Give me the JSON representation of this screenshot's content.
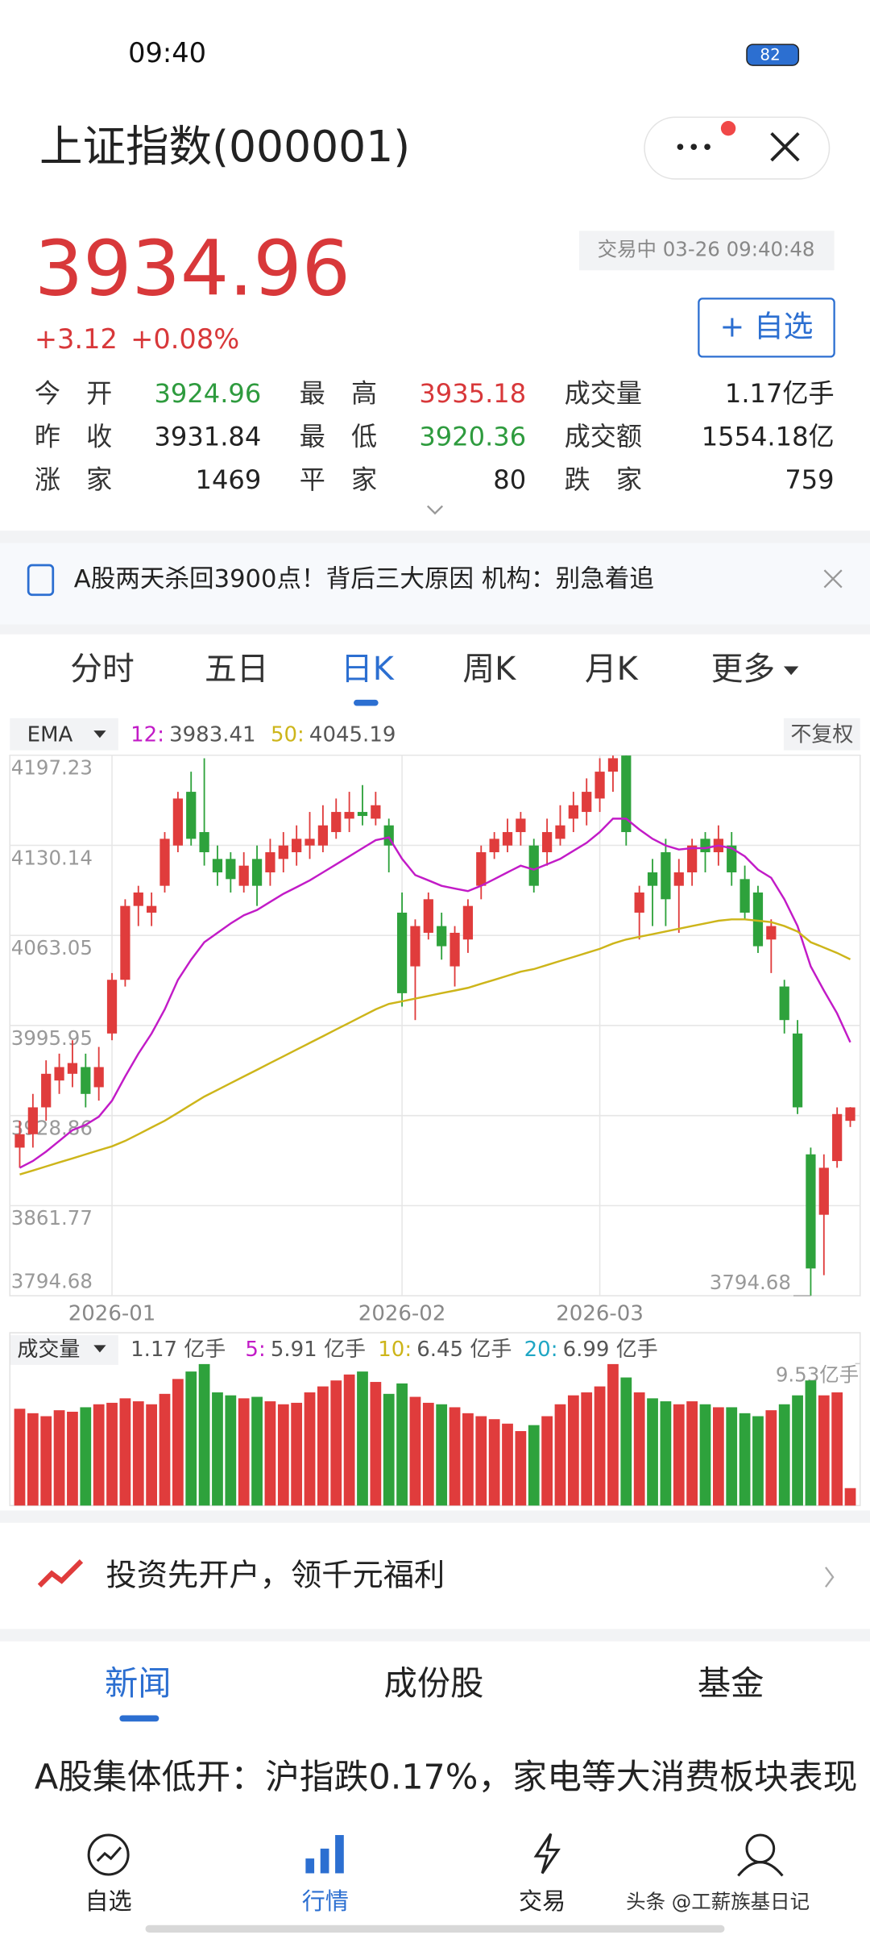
{
  "status": {
    "time": "09:40",
    "battery": "82"
  },
  "header": {
    "title": "上证指数(000001)"
  },
  "quote": {
    "price": "3934.96",
    "change": "+3.12",
    "percent": "+0.08%",
    "status": "交易中 03-26 09:40:48",
    "watch": "+ 自选"
  },
  "stats": [
    {
      "label": "今　开",
      "value": "3924.96",
      "color": "#2e9b3e"
    },
    {
      "label": "最　高",
      "value": "3935.18",
      "color": "#d8383a"
    },
    {
      "label": "成交量",
      "value": "1.17亿手",
      "color": "#222"
    },
    {
      "label": "昨　收",
      "value": "3931.84",
      "color": "#222"
    },
    {
      "label": "最　低",
      "value": "3920.36",
      "color": "#2e9b3e"
    },
    {
      "label": "成交额",
      "value": "1554.18亿",
      "color": "#222"
    },
    {
      "label": "涨　家",
      "value": "1469",
      "color": "#222"
    },
    {
      "label": "平　家",
      "value": "80",
      "color": "#222"
    },
    {
      "label": "跌　家",
      "value": "759",
      "color": "#222"
    }
  ],
  "news_banner": "A股两天杀回3900点！背后三大原因 机构：别急着追",
  "tabs": [
    "分时",
    "五日",
    "日K",
    "周K",
    "月K",
    "更多"
  ],
  "chart_data": {
    "type": "candlestick",
    "indicator": "EMA",
    "adjust": "不复权",
    "categories": [
      null,
      null,
      null,
      null,
      null,
      null,
      null,
      "2026-01",
      null,
      null,
      null,
      null,
      null,
      null,
      null,
      null,
      null,
      null,
      null,
      null,
      null,
      null,
      null,
      null,
      null,
      null,
      null,
      null,
      null,
      "2026-02",
      null,
      null,
      null,
      null,
      null,
      null,
      null,
      null,
      null,
      null,
      null,
      null,
      null,
      null,
      "2026-03",
      null,
      null,
      null,
      null,
      null,
      null,
      null,
      null,
      null,
      null,
      null,
      null,
      null,
      null,
      null,
      null,
      null,
      null,
      null
    ],
    "open": [
      3905,
      3915,
      3935,
      3955,
      3960,
      3965,
      3950,
      3990,
      4030,
      4085,
      4080,
      4100,
      4130,
      4170,
      4140,
      4120,
      4120,
      4100,
      4120,
      4110,
      4120,
      4125,
      4130,
      4130,
      4140,
      4150,
      4155,
      4150,
      4145,
      4080,
      4040,
      4065,
      4070,
      4040,
      4060,
      4100,
      4125,
      4130,
      4140,
      4130,
      4125,
      4135,
      4150,
      4155,
      4165,
      4185,
      4197,
      4080,
      4110,
      4125,
      4100,
      4110,
      4135,
      4125,
      4130,
      4105,
      4095,
      4060,
      4025,
      3990,
      3900,
      3855,
      3895,
      3924.96
    ],
    "high": [
      3925,
      3945,
      3970,
      3975,
      3985,
      3975,
      3980,
      4035,
      4090,
      4100,
      4095,
      4140,
      4170,
      4185,
      4195,
      4130,
      4125,
      4125,
      4130,
      4135,
      4140,
      4145,
      4155,
      4160,
      4165,
      4170,
      4175,
      4170,
      4150,
      4095,
      4075,
      4095,
      4080,
      4070,
      4090,
      4130,
      4140,
      4150,
      4155,
      4135,
      4150,
      4160,
      4170,
      4180,
      4195,
      4197,
      4197,
      4100,
      4120,
      4135,
      4120,
      4135,
      4140,
      4145,
      4140,
      4115,
      4100,
      4075,
      4030,
      4000,
      3905,
      3900,
      3935,
      3935.18
    ],
    "low": [
      3890,
      3905,
      3925,
      3945,
      3950,
      3935,
      3940,
      3985,
      4025,
      4070,
      4070,
      4095,
      4125,
      4130,
      4115,
      4100,
      4095,
      4095,
      4085,
      4100,
      4110,
      4115,
      4120,
      4125,
      4135,
      4140,
      4145,
      4145,
      4110,
      4010,
      4000,
      4060,
      4045,
      4025,
      4050,
      4090,
      4120,
      4125,
      4130,
      4095,
      4115,
      4130,
      4140,
      4145,
      4155,
      4170,
      4130,
      4060,
      4070,
      4070,
      4065,
      4100,
      4110,
      4115,
      4100,
      4075,
      4050,
      4035,
      3990,
      3930,
      3794.68,
      3810,
      3890,
      3920.36
    ],
    "close": [
      3915,
      3935,
      3960,
      3965,
      3968,
      3945,
      3965,
      4030,
      4085,
      4095,
      4085,
      4135,
      4165,
      4135,
      4125,
      4110,
      4105,
      4115,
      4100,
      4125,
      4130,
      4135,
      4135,
      4145,
      4155,
      4155,
      4152,
      4160,
      4130,
      4020,
      4070,
      4090,
      4055,
      4065,
      4085,
      4125,
      4135,
      4140,
      4150,
      4100,
      4140,
      4145,
      4160,
      4170,
      4185,
      4195,
      4140,
      4095,
      4100,
      4090,
      4110,
      4130,
      4125,
      4135,
      4110,
      4080,
      4055,
      4070,
      4000,
      3935,
      3815,
      3890,
      3930,
      3934.96
    ],
    "series": [
      {
        "name": "12:",
        "color": "#c21bc7",
        "values": [
          3890,
          3895,
          3902,
          3910,
          3918,
          3922,
          3928,
          3940,
          3958,
          3975,
          3990,
          4008,
          4030,
          4045,
          4058,
          4065,
          4072,
          4078,
          4082,
          4088,
          4094,
          4099,
          4104,
          4110,
          4116,
          4122,
          4128,
          4134,
          4136,
          4120,
          4108,
          4104,
          4100,
          4098,
          4096,
          4100,
          4105,
          4110,
          4115,
          4112,
          4116,
          4120,
          4126,
          4132,
          4140,
          4150,
          4150,
          4142,
          4135,
          4130,
          4127,
          4128,
          4128,
          4130,
          4128,
          4122,
          4112,
          4106,
          4090,
          4070,
          4040,
          4022,
          4005,
          3983.41
        ]
      },
      {
        "name": "50:",
        "color": "#cdb51a",
        "values": [
          3885,
          3888,
          3891,
          3894,
          3897,
          3900,
          3903,
          3906,
          3910,
          3915,
          3920,
          3925,
          3931,
          3937,
          3943,
          3948,
          3953,
          3958,
          3963,
          3968,
          3973,
          3978,
          3983,
          3988,
          3993,
          3998,
          4003,
          4008,
          4012,
          4014,
          4016,
          4018,
          4020,
          4022,
          4024,
          4027,
          4030,
          4033,
          4036,
          4038,
          4041,
          4044,
          4047,
          4050,
          4053,
          4057,
          4060,
          4062,
          4064,
          4066,
          4068,
          4070,
          4072,
          4074,
          4075,
          4075,
          4074,
          4073,
          4070,
          4066,
          4058,
          4054,
          4050,
          4045.19
        ]
      }
    ],
    "up_color": "#e03c3c",
    "down_color": "#2ea23c",
    "ylim": [
      3794.68,
      4197.23
    ],
    "yticks": [
      3794.68,
      3861.77,
      3928.86,
      3995.95,
      4063.05,
      4130.14,
      4197.23
    ],
    "grid": true,
    "high_marker": 4197.23,
    "low_marker": 3794.68
  },
  "volume": {
    "label": "成交量",
    "current": "1.17 亿手",
    "ma": [
      {
        "name": "5:",
        "value": "5.91 亿手",
        "color": "#c21bc7"
      },
      {
        "name": "10:",
        "value": "6.45 亿手",
        "color": "#cdb51a"
      },
      {
        "name": "20:",
        "value": "6.99 亿手",
        "color": "#1fa6c4"
      }
    ],
    "ylim": [
      0,
      9.53
    ],
    "yticks": [
      {
        "value": 9.53,
        "label": "9.53亿手"
      }
    ],
    "values": [
      6.5,
      6.2,
      6.0,
      6.4,
      6.3,
      6.6,
      6.8,
      6.9,
      7.2,
      7.0,
      6.8,
      7.5,
      8.5,
      9.0,
      9.5,
      7.6,
      7.4,
      7.2,
      7.3,
      7.0,
      6.8,
      6.9,
      7.6,
      8.0,
      8.4,
      8.8,
      9.0,
      8.3,
      7.5,
      8.2,
      7.3,
      6.9,
      6.8,
      6.6,
      6.2,
      6.0,
      5.8,
      5.5,
      5.0,
      5.4,
      6.0,
      6.8,
      7.4,
      7.6,
      8.0,
      9.5,
      8.6,
      7.6,
      7.2,
      7.0,
      6.8,
      7.0,
      6.8,
      6.6,
      6.6,
      6.2,
      6.0,
      6.4,
      6.8,
      7.4,
      8.4,
      7.4,
      7.6,
      1.17
    ]
  },
  "promo": "投资先开户，领千元福利",
  "content_tabs": [
    "新闻",
    "成份股",
    "基金"
  ],
  "headline": "A股集体低开：沪指跌0.17%，家电等大消费板块表现",
  "nav": [
    "自选",
    "行情",
    "交易"
  ],
  "watermark": "头条 @工薪族基日记"
}
